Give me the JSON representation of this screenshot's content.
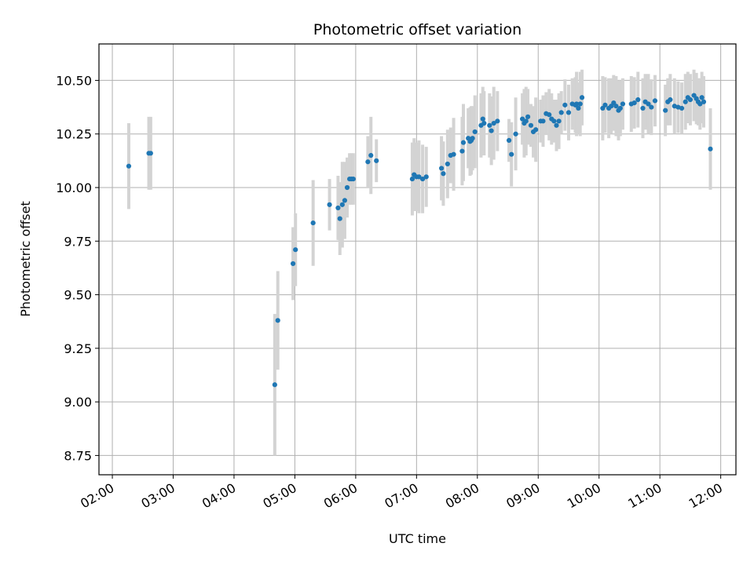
{
  "chart_data": {
    "type": "scatter",
    "title": "Photometric offset variation",
    "xlabel": "UTC time",
    "ylabel": "Photometric offset",
    "x_unit": "hours UTC",
    "xlim": [
      1.78,
      12.25
    ],
    "ylim": [
      8.66,
      10.67
    ],
    "x_ticks": [
      2,
      3,
      4,
      5,
      6,
      7,
      8,
      9,
      10,
      11,
      12
    ],
    "x_tick_labels": [
      "02:00",
      "03:00",
      "04:00",
      "05:00",
      "06:00",
      "07:00",
      "08:00",
      "09:00",
      "10:00",
      "11:00",
      "12:00"
    ],
    "y_ticks": [
      8.75,
      9.0,
      9.25,
      9.5,
      9.75,
      10.0,
      10.25,
      10.5
    ],
    "y_tick_labels": [
      "8.75",
      "9.00",
      "9.25",
      "9.50",
      "9.75",
      "10.00",
      "10.25",
      "10.50"
    ],
    "grid": true,
    "colors": {
      "point": "#1f77b4",
      "errorbar": "#d3d3d3",
      "grid": "#b0b0b0"
    },
    "series": [
      {
        "x": [
          2.27,
          2.6,
          2.63,
          4.67,
          4.72,
          4.97,
          5.01,
          5.3,
          5.57,
          5.71,
          5.74,
          5.78,
          5.82,
          5.86,
          5.9,
          5.93,
          5.96,
          6.2,
          6.25,
          6.34,
          6.93,
          6.96,
          7.0,
          7.04,
          7.1,
          7.16,
          7.41,
          7.44,
          7.51,
          7.56,
          7.61,
          7.75,
          7.77,
          7.85,
          7.88,
          7.9,
          7.92,
          7.96,
          8.06,
          8.09,
          8.11,
          8.2,
          8.23,
          8.27,
          8.33,
          8.52,
          8.56,
          8.63,
          8.74,
          8.77,
          8.8,
          8.83,
          8.88,
          8.92,
          8.96,
          9.04,
          9.08,
          9.13,
          9.18,
          9.22,
          9.26,
          9.3,
          9.34,
          9.38,
          9.44,
          9.5,
          9.56,
          9.61,
          9.63,
          9.66,
          9.69,
          9.72,
          10.06,
          10.1,
          10.16,
          10.2,
          10.24,
          10.28,
          10.32,
          10.35,
          10.39,
          10.53,
          10.58,
          10.64,
          10.72,
          10.76,
          10.81,
          10.86,
          10.92,
          11.09,
          11.13,
          11.17,
          11.24,
          11.3,
          11.36,
          11.42,
          11.46,
          11.5,
          11.56,
          11.6,
          11.63,
          11.66,
          11.69,
          11.72,
          11.83
        ],
        "y": [
          10.1,
          10.16,
          10.16,
          9.08,
          9.38,
          9.645,
          9.71,
          9.835,
          9.92,
          9.905,
          9.855,
          9.92,
          9.94,
          10.0,
          10.04,
          10.04,
          10.04,
          10.12,
          10.15,
          10.125,
          10.04,
          10.06,
          10.05,
          10.05,
          10.04,
          10.05,
          10.09,
          10.065,
          10.11,
          10.15,
          10.155,
          10.17,
          10.21,
          10.23,
          10.215,
          10.22,
          10.23,
          10.26,
          10.29,
          10.32,
          10.3,
          10.29,
          10.265,
          10.3,
          10.31,
          10.22,
          10.155,
          10.25,
          10.32,
          10.3,
          10.31,
          10.33,
          10.29,
          10.26,
          10.27,
          10.31,
          10.31,
          10.345,
          10.34,
          10.32,
          10.31,
          10.29,
          10.31,
          10.35,
          10.385,
          10.35,
          10.39,
          10.385,
          10.39,
          10.37,
          10.39,
          10.42,
          10.37,
          10.385,
          10.37,
          10.38,
          10.395,
          10.38,
          10.36,
          10.37,
          10.39,
          10.39,
          10.395,
          10.41,
          10.37,
          10.4,
          10.39,
          10.375,
          10.405,
          10.36,
          10.4,
          10.41,
          10.38,
          10.375,
          10.37,
          10.4,
          10.42,
          10.41,
          10.43,
          10.415,
          10.4,
          10.39,
          10.42,
          10.4,
          10.18
        ],
        "yerr": [
          0.2,
          0.17,
          0.17,
          0.33,
          0.23,
          0.17,
          0.17,
          0.2,
          0.12,
          0.15,
          0.17,
          0.2,
          0.18,
          0.14,
          0.12,
          0.12,
          0.12,
          0.12,
          0.18,
          0.1,
          0.17,
          0.17,
          0.16,
          0.17,
          0.16,
          0.14,
          0.15,
          0.15,
          0.16,
          0.13,
          0.17,
          0.16,
          0.18,
          0.14,
          0.16,
          0.16,
          0.15,
          0.17,
          0.15,
          0.15,
          0.15,
          0.15,
          0.16,
          0.17,
          0.14,
          0.1,
          0.15,
          0.17,
          0.12,
          0.16,
          0.16,
          0.13,
          0.1,
          0.12,
          0.15,
          0.1,
          0.12,
          0.1,
          0.12,
          0.12,
          0.1,
          0.12,
          0.13,
          0.1,
          0.12,
          0.13,
          0.12,
          0.13,
          0.15,
          0.12,
          0.15,
          0.13,
          0.15,
          0.13,
          0.14,
          0.13,
          0.13,
          0.14,
          0.14,
          0.13,
          0.12,
          0.13,
          0.12,
          0.13,
          0.14,
          0.13,
          0.14,
          0.13,
          0.12,
          0.12,
          0.11,
          0.12,
          0.13,
          0.12,
          0.12,
          0.13,
          0.12,
          0.12,
          0.12,
          0.12,
          0.11,
          0.12,
          0.12,
          0.12,
          0.19
        ]
      }
    ]
  }
}
